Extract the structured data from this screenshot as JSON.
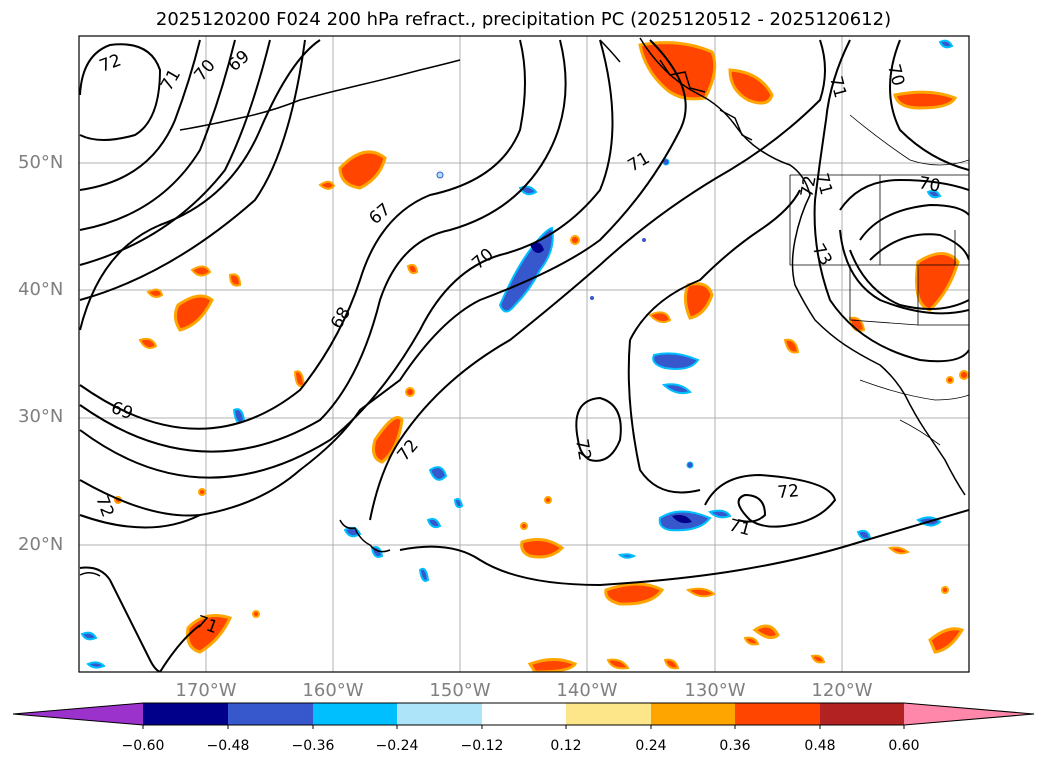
{
  "title": "2025120200 F024 200 hPa refract., precipitation PC (2025120512 - 2025120612)",
  "map": {
    "projection": "cylindrical",
    "lon_range": [
      -180,
      -110
    ],
    "lat_range": [
      10,
      60
    ],
    "grid": true,
    "lat_labels": [
      "50°N",
      "40°N",
      "30°N",
      "20°N"
    ],
    "lon_labels": [
      "170°W",
      "160°W",
      "150°W",
      "140°W",
      "130°W",
      "120°W"
    ],
    "contour_labels": [
      "72",
      "71",
      "70",
      "69",
      "67",
      "68",
      "70",
      "71",
      "69",
      "72",
      "72",
      "72",
      "72",
      "71",
      "71",
      "72",
      "73",
      "70",
      "71",
      "70",
      "71"
    ]
  },
  "colorbar": {
    "ticks": [
      "−0.60",
      "−0.48",
      "−0.36",
      "−0.24",
      "−0.12",
      "0.12",
      "0.24",
      "0.36",
      "0.48",
      "0.60"
    ],
    "colors": [
      "#9b32cc",
      "#00008b",
      "#3658cc",
      "#00bfff",
      "#aee4fa",
      "#ffffff",
      "#fde68a",
      "#ffa500",
      "#ff4500",
      "#b22222",
      "#ff88aa"
    ]
  }
}
